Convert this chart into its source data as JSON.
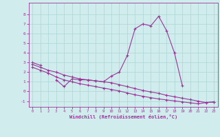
{
  "x": [
    0,
    1,
    2,
    3,
    4,
    5,
    6,
    7,
    8,
    9,
    10,
    11,
    12,
    13,
    14,
    15,
    16,
    17,
    18,
    19,
    20,
    21,
    22,
    23
  ],
  "line_main": [
    3.0,
    2.7,
    null,
    1.2,
    0.5,
    1.3,
    1.2,
    1.2,
    1.1,
    1.0,
    1.6,
    2.0,
    3.7,
    6.5,
    7.0,
    6.8,
    7.8,
    6.3,
    4.0,
    0.6,
    null,
    null,
    null,
    null
  ],
  "line_upper": [
    2.8,
    2.5,
    2.2,
    2.0,
    1.7,
    1.5,
    1.3,
    1.2,
    1.1,
    1.0,
    0.9,
    0.7,
    0.5,
    0.3,
    0.1,
    -0.05,
    -0.2,
    -0.4,
    -0.55,
    -0.7,
    -0.85,
    -1.0,
    -1.15,
    -1.1
  ],
  "line_lower": [
    2.5,
    2.2,
    1.9,
    1.5,
    1.2,
    1.0,
    0.8,
    0.65,
    0.5,
    0.35,
    0.2,
    0.05,
    -0.15,
    -0.35,
    -0.5,
    -0.65,
    -0.78,
    -0.88,
    -0.98,
    -1.08,
    -1.18,
    -1.28,
    -1.15,
    -1.08
  ],
  "color": "#993399",
  "bg_color": "#d0ecec",
  "grid_color": "#aad4d4",
  "xlabel": "Windchill (Refroidissement éolien,°C)",
  "xlim": [
    -0.5,
    23.5
  ],
  "ylim": [
    -1.6,
    9.2
  ],
  "yticks": [
    -1,
    0,
    1,
    2,
    3,
    4,
    5,
    6,
    7,
    8
  ],
  "xticks": [
    0,
    1,
    2,
    3,
    4,
    5,
    6,
    7,
    8,
    9,
    10,
    11,
    12,
    13,
    14,
    15,
    16,
    17,
    18,
    19,
    20,
    21,
    22,
    23
  ]
}
